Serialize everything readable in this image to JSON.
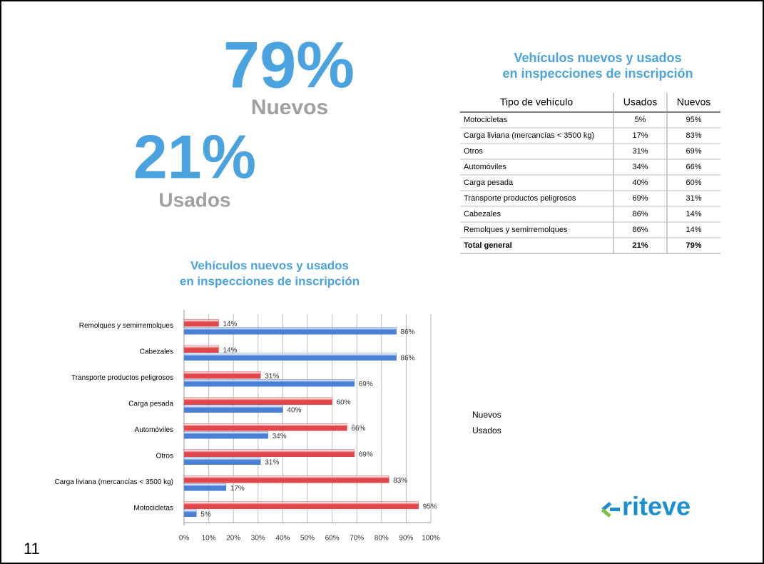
{
  "stats": [
    {
      "value": "79%",
      "label": "Nuevos"
    },
    {
      "value": "21%",
      "label": "Usados"
    }
  ],
  "table": {
    "title": [
      "Vehículos nuevos y usados",
      "en inspecciones de inscripción"
    ],
    "header": [
      "Tipo de vehículo",
      "Usados",
      "Nuevos"
    ],
    "rows": [
      [
        "Motocicletas",
        "5%",
        "95%"
      ],
      [
        "Carga liviana (mercancías < 3500 kg)",
        "17%",
        "83%"
      ],
      [
        "Otros",
        "31%",
        "69%"
      ],
      [
        "Automóviles",
        "34%",
        "66%"
      ],
      [
        "Carga pesada",
        "40%",
        "60%"
      ],
      [
        "Transporte productos peligrosos",
        "69%",
        "31%"
      ],
      [
        "Cabezales",
        "86%",
        "14%"
      ],
      [
        "Remolques y semirremolques",
        "86%",
        "14%"
      ]
    ],
    "total": [
      "Total general",
      "21%",
      "79%"
    ]
  },
  "chart_data": {
    "type": "hbar",
    "title": [
      "Vehículos nuevos y usados",
      "en inspecciones de inscripción"
    ],
    "categories": [
      "Remolques y semirremolques",
      "Cabezales",
      "Transporte productos peligrosos",
      "Carga pesada",
      "Automóviles",
      "Otros",
      "Carga liviana (mercancías < 3500 kg)",
      "Motocicletas"
    ],
    "series": [
      {
        "name": "Nuevos",
        "color": "#e0464a",
        "values": [
          14,
          14,
          31,
          60,
          66,
          69,
          83,
          95
        ],
        "value_labels": [
          "14%",
          "14%",
          "31%",
          "60%",
          "66%",
          "69%",
          "83%",
          "95%"
        ]
      },
      {
        "name": "Usados",
        "color": "#4a7fd6",
        "values": [
          86,
          86,
          69,
          40,
          34,
          31,
          17,
          5
        ],
        "value_labels": [
          "86%",
          "86%",
          "69%",
          "40%",
          "34%",
          "31%",
          "17%",
          "5%"
        ]
      }
    ],
    "xlim": [
      0,
      100
    ],
    "xticks": [
      {
        "value": 0,
        "label": "0%"
      },
      {
        "value": 10,
        "label": "10%"
      },
      {
        "value": 20,
        "label": "20%"
      },
      {
        "value": 30,
        "label": "30%"
      },
      {
        "value": 40,
        "label": "40%"
      },
      {
        "value": 50,
        "label": "50%"
      },
      {
        "value": 60,
        "label": "60%"
      },
      {
        "value": 70,
        "label": "70%"
      },
      {
        "value": 80,
        "label": "80%"
      },
      {
        "value": 90,
        "label": "90%"
      },
      {
        "value": 100,
        "label": "100%"
      }
    ],
    "grid": true
  },
  "page_number": "11",
  "logo": "riteve"
}
